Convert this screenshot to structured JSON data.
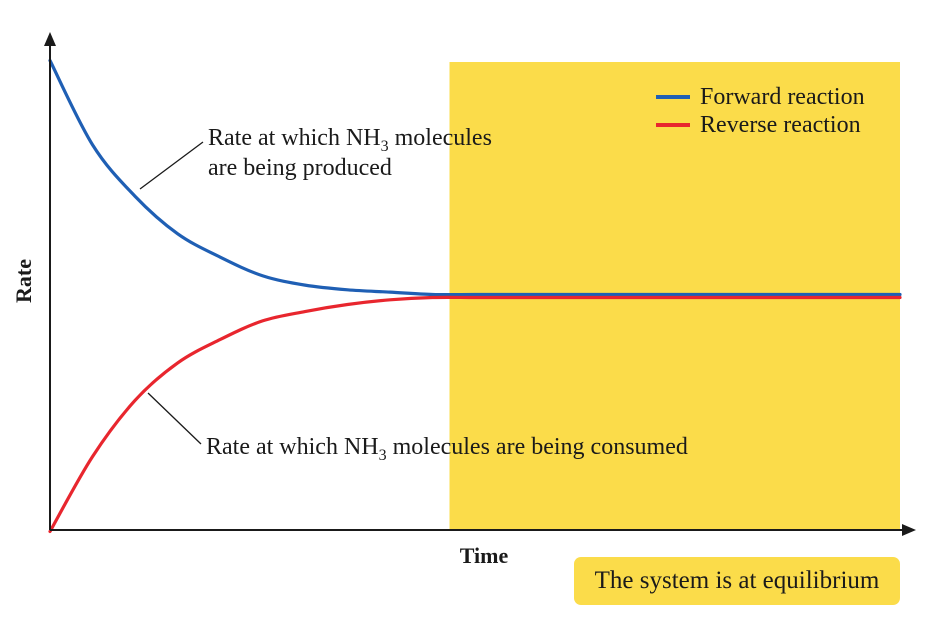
{
  "chart_data": {
    "type": "line",
    "xlabel": "Time",
    "ylabel": "Rate",
    "xlim": [
      0,
      1
    ],
    "ylim": [
      0,
      1
    ],
    "x": [
      0,
      0.05,
      0.1,
      0.15,
      0.2,
      0.25,
      0.3,
      0.35,
      0.4,
      0.45,
      0.5,
      0.55,
      0.6,
      0.65,
      0.7,
      0.75,
      0.8,
      0.85,
      0.9,
      0.95,
      1.0
    ],
    "series": [
      {
        "name": "Forward reaction",
        "color": "#1F5FB4",
        "values": [
          1.0,
          0.82,
          0.71,
          0.63,
          0.58,
          0.54,
          0.52,
          0.51,
          0.505,
          0.5,
          0.5,
          0.5,
          0.5,
          0.5,
          0.5,
          0.5,
          0.5,
          0.5,
          0.5,
          0.5,
          0.5
        ]
      },
      {
        "name": "Reverse reaction",
        "color": "#E8262E",
        "values": [
          0.0,
          0.16,
          0.28,
          0.36,
          0.41,
          0.45,
          0.47,
          0.485,
          0.495,
          0.5,
          0.5,
          0.5,
          0.5,
          0.5,
          0.5,
          0.5,
          0.5,
          0.5,
          0.5,
          0.5,
          0.5
        ]
      }
    ],
    "equilibrium_region": {
      "x_start": 0.47,
      "x_end": 1.0,
      "color": "#FBDC4A"
    },
    "legend": {
      "placement": "top-right",
      "entries": [
        "Forward reaction",
        "Reverse reaction"
      ]
    },
    "annotations": {
      "forward_line1": {
        "pre": "Rate at which NH",
        "sub": "3",
        "post": " molecules"
      },
      "forward_line2": "are being produced",
      "reverse": {
        "pre": "Rate at which NH",
        "sub": "3",
        "post": " molecules are being consumed"
      }
    },
    "grid": false
  },
  "badge": {
    "label": "The system is at equilibrium",
    "color": "#FBDC4A"
  }
}
